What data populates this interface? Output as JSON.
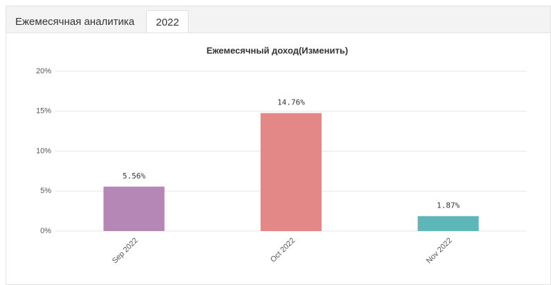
{
  "tabs": [
    "Ежемесячная аналитика",
    "2022"
  ],
  "chart_data": {
    "type": "bar",
    "title": "Ежемесячный доход(Изменить)",
    "categories": [
      "Sep 2022",
      "Oct 2022",
      "Nov 2022"
    ],
    "values": [
      5.56,
      14.76,
      1.87
    ],
    "value_labels": [
      "5.56%",
      "14.76%",
      "1.87%"
    ],
    "colors": [
      "#b487b6",
      "#e38886",
      "#5db6b8"
    ],
    "ylim": [
      0,
      20
    ],
    "yticks": [
      {
        "value": 0,
        "label": "0%"
      },
      {
        "value": 5,
        "label": "5%"
      },
      {
        "value": 10,
        "label": "10%"
      },
      {
        "value": 15,
        "label": "15%"
      },
      {
        "value": 20,
        "label": "20%"
      }
    ],
    "grid": true
  }
}
